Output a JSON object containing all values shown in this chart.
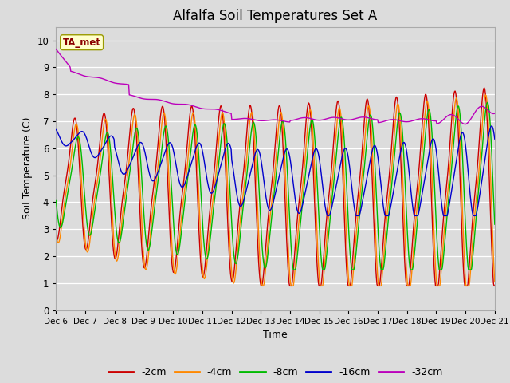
{
  "title": "Alfalfa Soil Temperatures Set A",
  "xlabel": "Time",
  "ylabel": "Soil Temperature (C)",
  "ylim": [
    0.0,
    10.5
  ],
  "yticks": [
    0.0,
    1.0,
    2.0,
    3.0,
    4.0,
    5.0,
    6.0,
    7.0,
    8.0,
    9.0,
    10.0
  ],
  "bg_color": "#dcdcdc",
  "plot_bg": "#dcdcdc",
  "series_colors": {
    "-2cm": "#cc0000",
    "-4cm": "#ff8800",
    "-8cm": "#00bb00",
    "-16cm": "#0000cc",
    "-32cm": "#bb00bb"
  },
  "legend_label": "TA_met",
  "x_tick_labels": [
    "Dec 6",
    "Dec 7",
    "Dec 8",
    "Dec 9",
    "Dec 10",
    "Dec 11",
    "Dec 12",
    "Dec 13",
    "Dec 14",
    "Dec 15",
    "Dec 16",
    "Dec 17",
    "Dec 18",
    "Dec 19",
    "Dec 20",
    "Dec 21"
  ],
  "n_days": 15,
  "points_per_day": 48
}
